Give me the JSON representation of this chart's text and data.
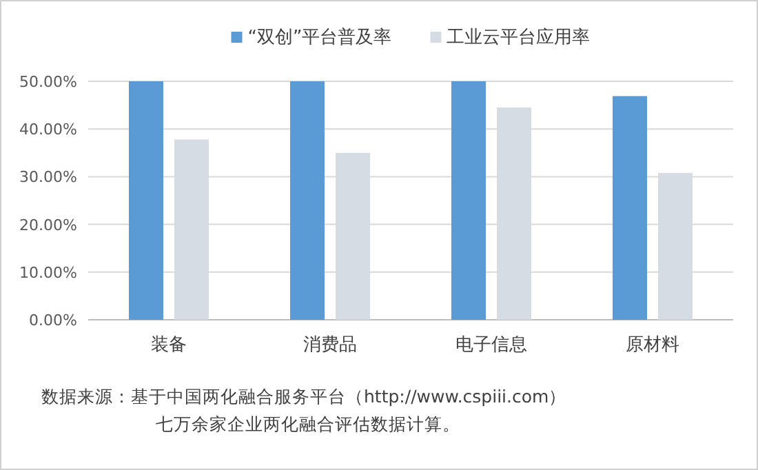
{
  "chart_data": {
    "type": "bar",
    "categories": [
      "装备",
      "消费品",
      "电子信息",
      "原材料"
    ],
    "series": [
      {
        "name": "“双创”平台普及率",
        "color": "#5b9bd5",
        "values": [
          50,
          50,
          50,
          46.9
        ]
      },
      {
        "name": "工业云平台应用率",
        "color": "#d6dce4",
        "values": [
          37.8,
          35.0,
          44.5,
          30.8
        ]
      }
    ],
    "ylim": [
      0,
      50
    ],
    "yticks": [
      {
        "value": 0,
        "label": "0.00%"
      },
      {
        "value": 10,
        "label": "10.00%"
      },
      {
        "value": 20,
        "label": "20.00%"
      },
      {
        "value": 30,
        "label": "30.00%"
      },
      {
        "value": 40,
        "label": "40.00%"
      },
      {
        "value": 50,
        "label": "50.00%"
      }
    ],
    "grid": "y",
    "legend": "top",
    "annotations": [
      "数据来源：基于中国两化融合服务平台（http://www.cspiii.com）",
      "七万余家企业两化融合评估数据计算。"
    ]
  }
}
